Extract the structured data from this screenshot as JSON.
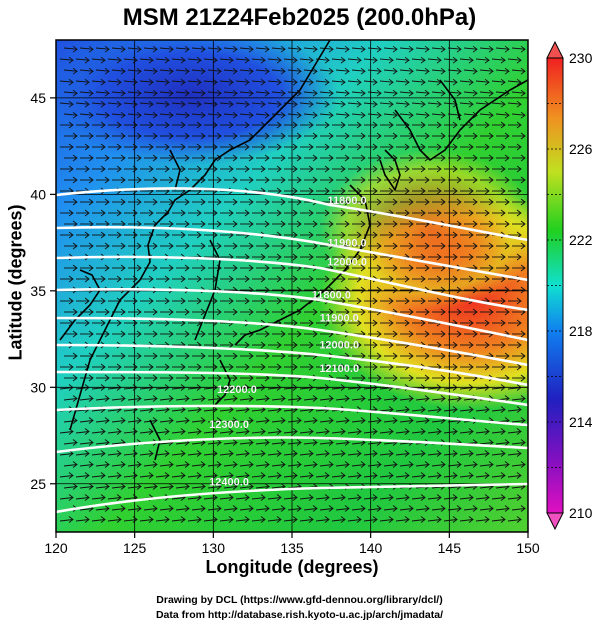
{
  "title": "MSM 21Z24Feb2025 (200.0hPa)",
  "x_axis": {
    "label": "Longitude (degrees)",
    "range": [
      120,
      150
    ],
    "ticks": [
      "120",
      "125",
      "130",
      "135",
      "140",
      "145",
      "150"
    ]
  },
  "y_axis": {
    "label": "Latitude  (degrees)",
    "range": [
      22.5,
      48
    ],
    "ticks": [
      "25",
      "30",
      "35",
      "40",
      "45"
    ]
  },
  "colorbar": {
    "min": 210,
    "max": 230,
    "ticks": [
      "210",
      "214",
      "218",
      "222",
      "226",
      "230"
    ],
    "colors": [
      "#c000c0",
      "#2020c0",
      "#1060f0",
      "#10d0e0",
      "#20d020",
      "#c0e020",
      "#f0e020",
      "#f08020",
      "#f03020"
    ]
  },
  "contours": [
    {
      "label": "11800.0",
      "lon": 138.5,
      "lat": 39.5
    },
    {
      "label": "11900.0",
      "lon": 138.5,
      "lat": 37.3
    },
    {
      "label": "12000.0",
      "lon": 138.5,
      "lat": 36.3
    },
    {
      "label": "11800.0",
      "lon": 137.5,
      "lat": 34.6
    },
    {
      "label": "11900.0",
      "lon": 138.0,
      "lat": 33.4
    },
    {
      "label": "12000.0",
      "lon": 138.0,
      "lat": 32.0
    },
    {
      "label": "12100.0",
      "lon": 138.0,
      "lat": 30.8
    },
    {
      "label": "12200.0",
      "lon": 131.5,
      "lat": 29.7
    },
    {
      "label": "12300.0",
      "lon": 131.0,
      "lat": 27.9
    },
    {
      "label": "12400.0",
      "lon": 131.0,
      "lat": 24.9
    }
  ],
  "credits": [
    "Drawing by DCL (https://www.gfd-dennou.org/library/dcl/)",
    "Data from http://database.rish.kyoto-u.ac.jp/arch/jmadata/"
  ]
}
